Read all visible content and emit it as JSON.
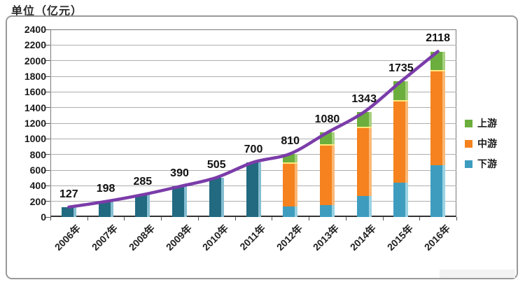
{
  "chart_data": {
    "type": "bar",
    "subtype": "stacked-bar-with-total-line",
    "title": "单位（亿元）",
    "categories": [
      "2006年",
      "2007年",
      "2008年",
      "2009年",
      "2010年",
      "2011年",
      "2012年",
      "2013年",
      "2014年",
      "2015年",
      "2016年"
    ],
    "totals": [
      127,
      198,
      285,
      390,
      505,
      700,
      810,
      1080,
      1343,
      1735,
      2118
    ],
    "total_labels": [
      "127",
      "198",
      "285",
      "390",
      "505",
      "700",
      "810",
      "1080",
      "1343",
      "1735",
      "2118"
    ],
    "solid_bars": {
      "color": "#216a80",
      "edge_color": "#85bdd1",
      "values": [
        127,
        198,
        285,
        390,
        505,
        700,
        null,
        null,
        null,
        null,
        null
      ]
    },
    "stacked_series": [
      {
        "label": "下游",
        "slug": "downstream",
        "color": "#3e9dbf",
        "edge_color": "#9ad2e3",
        "values": [
          null,
          null,
          null,
          null,
          null,
          null,
          130,
          155,
          270,
          435,
          665
        ]
      },
      {
        "label": "中游",
        "slug": "midstream",
        "color": "#f5821e",
        "edge_color": "#f9b877",
        "values": [
          null,
          null,
          null,
          null,
          null,
          null,
          570,
          775,
          883,
          1060,
          1215
        ]
      },
      {
        "label": "上游",
        "slug": "upstream",
        "color": "#6bae3d",
        "edge_color": "#a6d07f",
        "values": [
          null,
          null,
          null,
          null,
          null,
          null,
          110,
          150,
          190,
          240,
          238
        ]
      }
    ],
    "separator_color": "#ffe87c",
    "line_series": {
      "color": "#7b3ca9",
      "values": [
        127,
        198,
        285,
        390,
        505,
        700,
        810,
        1080,
        1343,
        1735,
        2118
      ]
    },
    "legend": [
      {
        "label": "上游",
        "color": "#6bae3d"
      },
      {
        "label": "中游",
        "color": "#f5821e"
      },
      {
        "label": "下游",
        "color": "#3e9dbf"
      }
    ],
    "y_ticks": [
      0,
      200,
      400,
      600,
      800,
      1000,
      1200,
      1400,
      1600,
      1800,
      2000,
      2200,
      2400
    ],
    "ylim": [
      0,
      2400
    ],
    "grid": true,
    "legend_position": "right"
  }
}
